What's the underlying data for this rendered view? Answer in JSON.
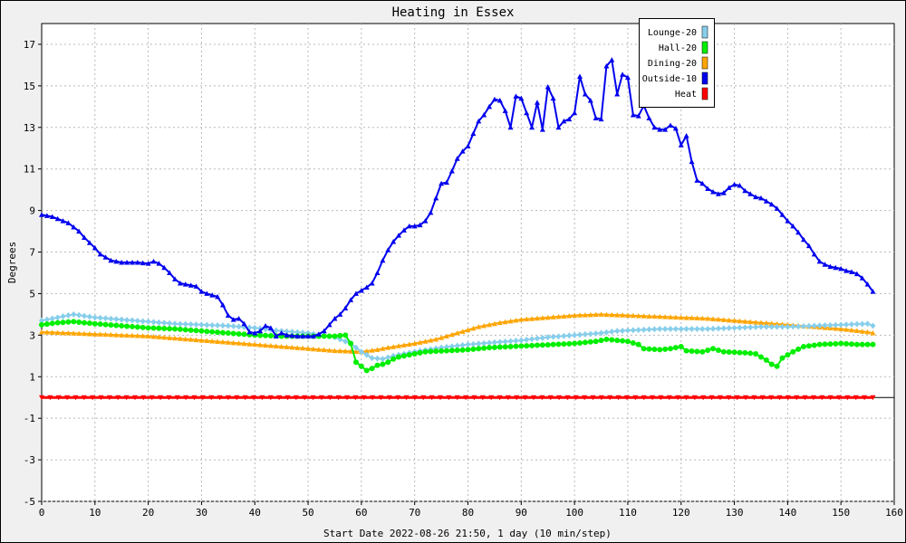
{
  "chart_data": {
    "type": "line",
    "title": "Heating in Essex",
    "xlabel": "Start Date 2022-08-26 21:50, 1 day (10 min/step)",
    "ylabel": "Degrees",
    "xlim": [
      0,
      160
    ],
    "ylim": [
      -5,
      18
    ],
    "x_ticks": [
      0,
      10,
      20,
      30,
      40,
      50,
      60,
      70,
      80,
      90,
      100,
      110,
      120,
      130,
      140,
      150,
      160
    ],
    "y_ticks": [
      -5,
      -3,
      -1,
      1,
      3,
      5,
      7,
      9,
      11,
      13,
      15,
      17
    ],
    "grid": true,
    "legend_position": "top-right",
    "series": [
      {
        "name": "Lounge-20",
        "color": "#87ceeb",
        "marker": "diamond",
        "points": [
          [
            0,
            3.7
          ],
          [
            3,
            3.85
          ],
          [
            6,
            4.0
          ],
          [
            10,
            3.85
          ],
          [
            15,
            3.75
          ],
          [
            20,
            3.65
          ],
          [
            25,
            3.55
          ],
          [
            30,
            3.5
          ],
          [
            35,
            3.45
          ],
          [
            40,
            3.35
          ],
          [
            45,
            3.2
          ],
          [
            50,
            3.1
          ],
          [
            55,
            2.9
          ],
          [
            58,
            2.6
          ],
          [
            60,
            2.2
          ],
          [
            62,
            1.9
          ],
          [
            64,
            1.85
          ],
          [
            66,
            2.0
          ],
          [
            70,
            2.2
          ],
          [
            75,
            2.4
          ],
          [
            80,
            2.55
          ],
          [
            85,
            2.65
          ],
          [
            90,
            2.75
          ],
          [
            95,
            2.9
          ],
          [
            100,
            3.0
          ],
          [
            105,
            3.1
          ],
          [
            108,
            3.2
          ],
          [
            112,
            3.25
          ],
          [
            116,
            3.3
          ],
          [
            120,
            3.3
          ],
          [
            125,
            3.3
          ],
          [
            130,
            3.35
          ],
          [
            135,
            3.4
          ],
          [
            140,
            3.4
          ],
          [
            145,
            3.45
          ],
          [
            150,
            3.5
          ],
          [
            155,
            3.55
          ],
          [
            156,
            3.45
          ]
        ]
      },
      {
        "name": "Hall-20",
        "color": "#00ee00",
        "marker": "circle",
        "points": [
          [
            0,
            3.5
          ],
          [
            3,
            3.6
          ],
          [
            6,
            3.65
          ],
          [
            10,
            3.55
          ],
          [
            15,
            3.45
          ],
          [
            20,
            3.35
          ],
          [
            25,
            3.3
          ],
          [
            30,
            3.2
          ],
          [
            35,
            3.1
          ],
          [
            40,
            3.0
          ],
          [
            45,
            2.95
          ],
          [
            50,
            2.95
          ],
          [
            55,
            2.95
          ],
          [
            57,
            3.0
          ],
          [
            58,
            2.6
          ],
          [
            59,
            1.7
          ],
          [
            60,
            1.5
          ],
          [
            61,
            1.3
          ],
          [
            62,
            1.4
          ],
          [
            63,
            1.55
          ],
          [
            64,
            1.6
          ],
          [
            65,
            1.7
          ],
          [
            66,
            1.85
          ],
          [
            67,
            1.95
          ],
          [
            69,
            2.05
          ],
          [
            72,
            2.2
          ],
          [
            76,
            2.25
          ],
          [
            80,
            2.3
          ],
          [
            84,
            2.4
          ],
          [
            88,
            2.45
          ],
          [
            92,
            2.5
          ],
          [
            96,
            2.55
          ],
          [
            100,
            2.6
          ],
          [
            104,
            2.7
          ],
          [
            106,
            2.8
          ],
          [
            108,
            2.75
          ],
          [
            110,
            2.7
          ],
          [
            112,
            2.55
          ],
          [
            113,
            2.35
          ],
          [
            116,
            2.3
          ],
          [
            118,
            2.35
          ],
          [
            120,
            2.45
          ],
          [
            121,
            2.25
          ],
          [
            124,
            2.2
          ],
          [
            126,
            2.35
          ],
          [
            128,
            2.2
          ],
          [
            132,
            2.15
          ],
          [
            134,
            2.1
          ],
          [
            136,
            1.8
          ],
          [
            137,
            1.6
          ],
          [
            138,
            1.5
          ],
          [
            139,
            1.9
          ],
          [
            141,
            2.2
          ],
          [
            143,
            2.45
          ],
          [
            146,
            2.55
          ],
          [
            150,
            2.6
          ],
          [
            153,
            2.55
          ],
          [
            156,
            2.55
          ]
        ]
      },
      {
        "name": "Dining-20",
        "color": "#ffa500",
        "marker": "triangle-up",
        "points": [
          [
            0,
            3.15
          ],
          [
            5,
            3.1
          ],
          [
            10,
            3.05
          ],
          [
            15,
            3.0
          ],
          [
            20,
            2.95
          ],
          [
            25,
            2.85
          ],
          [
            30,
            2.75
          ],
          [
            35,
            2.65
          ],
          [
            40,
            2.55
          ],
          [
            45,
            2.45
          ],
          [
            50,
            2.35
          ],
          [
            55,
            2.25
          ],
          [
            60,
            2.2
          ],
          [
            63,
            2.3
          ],
          [
            65,
            2.4
          ],
          [
            70,
            2.6
          ],
          [
            74,
            2.8
          ],
          [
            78,
            3.1
          ],
          [
            82,
            3.4
          ],
          [
            86,
            3.6
          ],
          [
            90,
            3.75
          ],
          [
            95,
            3.85
          ],
          [
            100,
            3.95
          ],
          [
            105,
            4.0
          ],
          [
            110,
            3.95
          ],
          [
            115,
            3.9
          ],
          [
            120,
            3.85
          ],
          [
            125,
            3.8
          ],
          [
            130,
            3.7
          ],
          [
            135,
            3.6
          ],
          [
            140,
            3.5
          ],
          [
            145,
            3.4
          ],
          [
            150,
            3.3
          ],
          [
            155,
            3.15
          ],
          [
            156,
            3.1
          ]
        ]
      },
      {
        "name": "Outside-10",
        "color": "#0000ee",
        "marker": "triangle-up",
        "points": [
          [
            0,
            8.8
          ],
          [
            2,
            8.7
          ],
          [
            3,
            8.6
          ],
          [
            5,
            8.4
          ],
          [
            6,
            8.2
          ],
          [
            7,
            8.0
          ],
          [
            8,
            7.7
          ],
          [
            9,
            7.45
          ],
          [
            10,
            7.2
          ],
          [
            11,
            6.9
          ],
          [
            12,
            6.75
          ],
          [
            13,
            6.6
          ],
          [
            15,
            6.5
          ],
          [
            18,
            6.5
          ],
          [
            20,
            6.45
          ],
          [
            21,
            6.55
          ],
          [
            22,
            6.45
          ],
          [
            23,
            6.25
          ],
          [
            24,
            6.0
          ],
          [
            25,
            5.7
          ],
          [
            26,
            5.5
          ],
          [
            27,
            5.45
          ],
          [
            28,
            5.4
          ],
          [
            29,
            5.35
          ],
          [
            30,
            5.1
          ],
          [
            31,
            5.0
          ],
          [
            33,
            4.85
          ],
          [
            34,
            4.45
          ],
          [
            35,
            3.95
          ],
          [
            36,
            3.75
          ],
          [
            37,
            3.8
          ],
          [
            38,
            3.55
          ],
          [
            39,
            3.15
          ],
          [
            40,
            3.1
          ],
          [
            41,
            3.2
          ],
          [
            42,
            3.45
          ],
          [
            43,
            3.35
          ],
          [
            44,
            2.95
          ],
          [
            45,
            3.1
          ],
          [
            46,
            3.0
          ],
          [
            48,
            2.95
          ],
          [
            50,
            2.95
          ],
          [
            51,
            2.95
          ],
          [
            52,
            3.05
          ],
          [
            53,
            3.2
          ],
          [
            54,
            3.5
          ],
          [
            55,
            3.8
          ],
          [
            56,
            4.0
          ],
          [
            57,
            4.3
          ],
          [
            58,
            4.7
          ],
          [
            59,
            5.0
          ],
          [
            60,
            5.15
          ],
          [
            61,
            5.3
          ],
          [
            62,
            5.5
          ],
          [
            63,
            6.0
          ],
          [
            64,
            6.6
          ],
          [
            65,
            7.1
          ],
          [
            66,
            7.5
          ],
          [
            67,
            7.8
          ],
          [
            68,
            8.05
          ],
          [
            69,
            8.25
          ],
          [
            70,
            8.25
          ],
          [
            71,
            8.3
          ],
          [
            72,
            8.5
          ],
          [
            73,
            8.9
          ],
          [
            74,
            9.6
          ],
          [
            75,
            10.3
          ],
          [
            76,
            10.35
          ],
          [
            77,
            10.9
          ],
          [
            78,
            11.5
          ],
          [
            79,
            11.85
          ],
          [
            80,
            12.1
          ],
          [
            81,
            12.7
          ],
          [
            82,
            13.3
          ],
          [
            83,
            13.6
          ],
          [
            84,
            14.0
          ],
          [
            85,
            14.35
          ],
          [
            86,
            14.3
          ],
          [
            87,
            13.8
          ],
          [
            88,
            13.0
          ],
          [
            89,
            14.5
          ],
          [
            90,
            14.4
          ],
          [
            91,
            13.7
          ],
          [
            92,
            13.0
          ],
          [
            93,
            14.2
          ],
          [
            94,
            12.9
          ],
          [
            95,
            14.95
          ],
          [
            96,
            14.4
          ],
          [
            97,
            13.0
          ],
          [
            98,
            13.3
          ],
          [
            99,
            13.4
          ],
          [
            100,
            13.7
          ],
          [
            101,
            15.45
          ],
          [
            102,
            14.6
          ],
          [
            103,
            14.3
          ],
          [
            104,
            13.45
          ],
          [
            105,
            13.4
          ],
          [
            106,
            15.95
          ],
          [
            107,
            16.25
          ],
          [
            108,
            14.6
          ],
          [
            109,
            15.55
          ],
          [
            110,
            15.4
          ],
          [
            111,
            13.6
          ],
          [
            112,
            13.55
          ],
          [
            113,
            14.05
          ],
          [
            114,
            13.45
          ],
          [
            115,
            13.0
          ],
          [
            116,
            12.9
          ],
          [
            117,
            12.9
          ],
          [
            118,
            13.1
          ],
          [
            119,
            12.95
          ],
          [
            120,
            12.15
          ],
          [
            121,
            12.6
          ],
          [
            122,
            11.35
          ],
          [
            123,
            10.45
          ],
          [
            124,
            10.3
          ],
          [
            125,
            10.05
          ],
          [
            126,
            9.9
          ],
          [
            127,
            9.8
          ],
          [
            128,
            9.85
          ],
          [
            129,
            10.1
          ],
          [
            130,
            10.25
          ],
          [
            131,
            10.2
          ],
          [
            132,
            9.95
          ],
          [
            133,
            9.8
          ],
          [
            134,
            9.65
          ],
          [
            135,
            9.6
          ],
          [
            136,
            9.45
          ],
          [
            137,
            9.3
          ],
          [
            138,
            9.1
          ],
          [
            139,
            8.8
          ],
          [
            140,
            8.5
          ],
          [
            141,
            8.25
          ],
          [
            142,
            7.95
          ],
          [
            143,
            7.6
          ],
          [
            144,
            7.3
          ],
          [
            145,
            6.9
          ],
          [
            146,
            6.55
          ],
          [
            147,
            6.4
          ],
          [
            148,
            6.3
          ],
          [
            149,
            6.25
          ],
          [
            150,
            6.2
          ],
          [
            151,
            6.1
          ],
          [
            152,
            6.05
          ],
          [
            153,
            5.95
          ],
          [
            154,
            5.75
          ],
          [
            155,
            5.45
          ],
          [
            156,
            5.1
          ]
        ]
      },
      {
        "name": "Heat",
        "color": "#ff0000",
        "marker": "triangle-down",
        "points": [
          [
            0,
            0
          ],
          [
            156,
            0
          ]
        ]
      }
    ]
  }
}
